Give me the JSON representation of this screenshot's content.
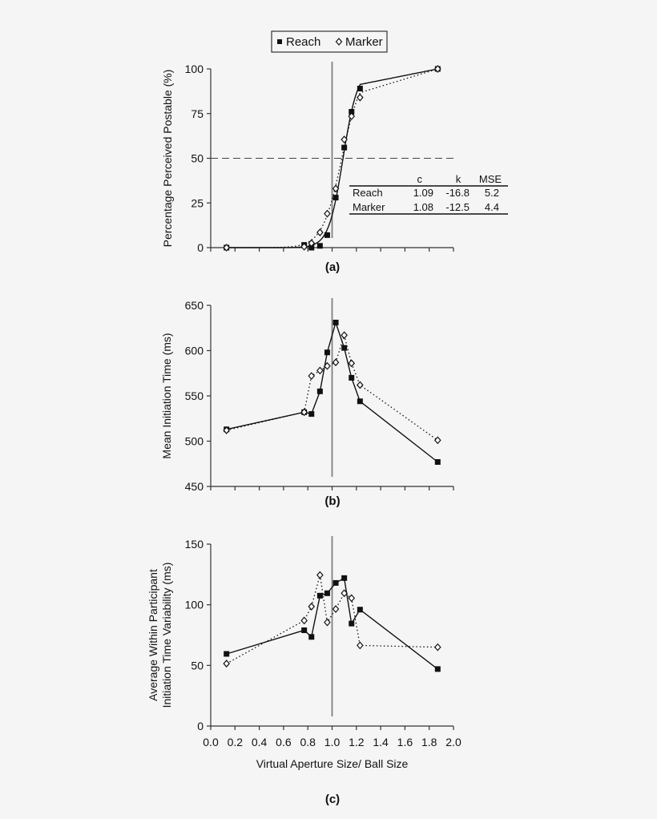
{
  "legend": {
    "items": [
      {
        "label": "Reach",
        "marker": "filled-square"
      },
      {
        "label": "Marker",
        "marker": "open-diamond"
      }
    ]
  },
  "colors": {
    "background": "#f5f5f5",
    "series": "#111111",
    "reference_line": "#808080"
  },
  "chart_data": [
    {
      "type": "line",
      "panel": "(a)",
      "title": "",
      "xlabel": "",
      "ylabel": "Percentage Perceived Postable (%)",
      "ylim": [
        0,
        100
      ],
      "yticks": [
        0,
        25,
        50,
        75,
        100
      ],
      "xlim": [
        0,
        2.0
      ],
      "x": [
        0.13,
        0.77,
        0.83,
        0.9,
        0.96,
        1.03,
        1.1,
        1.16,
        1.23,
        1.87
      ],
      "series": [
        {
          "name": "Reach",
          "marker": "filled-square",
          "line": "solid-fit",
          "values": [
            0,
            1.5,
            0,
            1,
            7,
            28,
            56,
            76,
            89,
            100
          ]
        },
        {
          "name": "Marker",
          "marker": "open-diamond",
          "line": "dotted-fit",
          "values": [
            0,
            0.5,
            2.5,
            8.5,
            19,
            33,
            60.5,
            73.5,
            84,
            100
          ]
        }
      ],
      "reference_lines": [
        {
          "orientation": "horizontal",
          "value": 50,
          "style": "dashed"
        },
        {
          "orientation": "vertical",
          "value": 1.0,
          "style": "solid-gray"
        }
      ],
      "fit_table": {
        "columns": [
          "",
          "c",
          "k",
          "MSE"
        ],
        "rows": [
          [
            "Reach",
            "1.09",
            "-16.8",
            "5.2"
          ],
          [
            "Marker",
            "1.08",
            "-12.5",
            "4.4"
          ]
        ]
      },
      "grid": false,
      "legend_position": "top-center"
    },
    {
      "type": "line",
      "panel": "(b)",
      "title": "",
      "xlabel": "",
      "ylabel": "Mean Initiation Time (ms)",
      "ylim": [
        450,
        650
      ],
      "yticks": [
        450,
        500,
        550,
        600,
        650
      ],
      "xlim": [
        0,
        2.0
      ],
      "x": [
        0.13,
        0.77,
        0.83,
        0.9,
        0.96,
        1.03,
        1.1,
        1.16,
        1.23,
        1.87
      ],
      "series": [
        {
          "name": "Reach",
          "marker": "filled-square",
          "line": "solid",
          "values": [
            513,
            532,
            530,
            555,
            598,
            631,
            603,
            570,
            544,
            477
          ]
        },
        {
          "name": "Marker",
          "marker": "open-diamond",
          "line": "dotted",
          "values": [
            512,
            532,
            572,
            578,
            583,
            587,
            617,
            586,
            562,
            501
          ]
        }
      ],
      "reference_lines": [
        {
          "orientation": "vertical",
          "value": 1.0,
          "style": "solid-gray"
        }
      ],
      "grid": false
    },
    {
      "type": "line",
      "panel": "(c)",
      "title": "",
      "xlabel": "Virtual Aperture Size/ Ball Size",
      "ylabel": "Average Within Participant Initiation Time Variability (ms)",
      "ylim": [
        0,
        150
      ],
      "yticks": [
        0,
        50,
        100,
        150
      ],
      "xlim": [
        0,
        2.0
      ],
      "xticks": [
        "0.0",
        "0.2",
        "0.4",
        "0.6",
        "0.8",
        "1.0",
        "1.2",
        "1.4",
        "1.6",
        "1.8",
        "2.0"
      ],
      "x": [
        0.13,
        0.77,
        0.83,
        0.9,
        0.96,
        1.03,
        1.1,
        1.16,
        1.23,
        1.87
      ],
      "series": [
        {
          "name": "Reach",
          "marker": "filled-square",
          "line": "solid",
          "values": [
            59.5,
            79,
            73.5,
            107.5,
            109.5,
            118,
            122,
            84.5,
            96,
            47
          ]
        },
        {
          "name": "Marker",
          "marker": "open-diamond",
          "line": "dotted",
          "values": [
            51.5,
            87,
            98.5,
            124.5,
            85.5,
            96.5,
            109.5,
            105.5,
            66.5,
            65
          ]
        }
      ],
      "reference_lines": [
        {
          "orientation": "vertical",
          "value": 1.0,
          "style": "solid-gray"
        }
      ],
      "grid": false
    }
  ]
}
